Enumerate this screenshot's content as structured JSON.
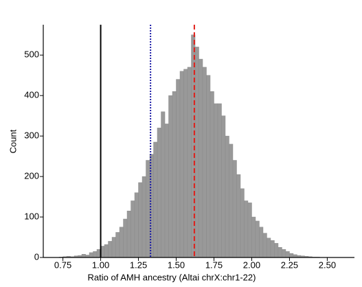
{
  "chart_data": {
    "type": "histogram",
    "xlabel": "Ratio of AMH ancestry (Altai chrX:chr1-22)",
    "ylabel": "Count",
    "bins": [
      0.7,
      0.725,
      0.75,
      0.775,
      0.8,
      0.825,
      0.85,
      0.875,
      0.9,
      0.925,
      0.95,
      0.975,
      1,
      1.025,
      1.05,
      1.075,
      1.1,
      1.125,
      1.15,
      1.175,
      1.2,
      1.225,
      1.25,
      1.275,
      1.3,
      1.325,
      1.35,
      1.375,
      1.4,
      1.425,
      1.45,
      1.475,
      1.5,
      1.525,
      1.55,
      1.575,
      1.6,
      1.625,
      1.65,
      1.675,
      1.7,
      1.725,
      1.75,
      1.775,
      1.8,
      1.825,
      1.85,
      1.875,
      1.9,
      1.925,
      1.95,
      1.975,
      2,
      2.025,
      2.05,
      2.075,
      2.1,
      2.125,
      2.15,
      2.175,
      2.2,
      2.225,
      2.25,
      2.275,
      2.3,
      2.325,
      2.35,
      2.375,
      2.4,
      2.425,
      2.45,
      2.475
    ],
    "values": [
      0,
      1,
      2,
      3,
      2,
      4,
      5,
      8,
      6,
      12,
      15,
      20,
      28,
      32,
      40,
      50,
      62,
      75,
      95,
      115,
      140,
      160,
      185,
      200,
      240,
      255,
      285,
      320,
      360,
      330,
      400,
      410,
      440,
      460,
      465,
      470,
      550,
      520,
      490,
      470,
      450,
      410,
      380,
      380,
      350,
      300,
      280,
      240,
      205,
      170,
      140,
      135,
      100,
      90,
      75,
      60,
      48,
      42,
      35,
      25,
      20,
      15,
      10,
      7,
      5,
      4,
      3,
      2,
      1,
      1,
      0
    ],
    "color": "#999999",
    "xlim": [
      0.62,
      2.68
    ],
    "ylim": [
      0,
      575
    ],
    "xticks": [
      0.75,
      {
        "value": 1,
        "label": "1.00"
      },
      1.25,
      {
        "value": 1.5,
        "label": "1.50"
      },
      1.75,
      {
        "value": 2,
        "label": "2.00"
      },
      2.25,
      {
        "value": 2.5,
        "label": "2.50"
      }
    ],
    "yticks": [
      0,
      100,
      200,
      300,
      400,
      500
    ],
    "vlines": [
      {
        "x": 1,
        "color": "#000000",
        "dash": "none"
      },
      {
        "x": 1.33,
        "color": "#1a1aa6",
        "dash": "2,2"
      },
      {
        "x": 1.62,
        "color": "#e0201b",
        "dash": "7,4"
      }
    ]
  }
}
